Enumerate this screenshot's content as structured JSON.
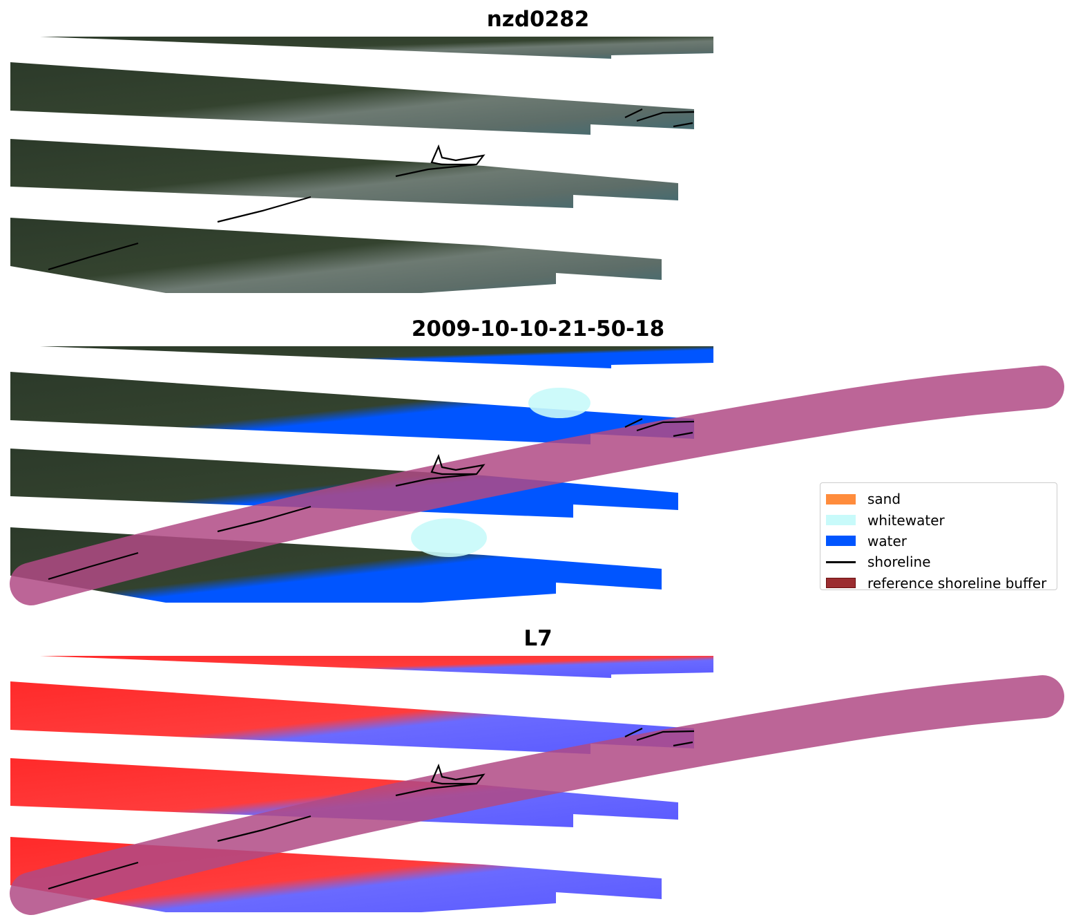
{
  "panels": [
    {
      "title": "nzd0282"
    },
    {
      "title": "2009-10-10-21-50-18"
    },
    {
      "title": "L7"
    }
  ],
  "legend": {
    "items": [
      {
        "label": "sand",
        "color": "#ff8c3c",
        "kind": "patch"
      },
      {
        "label": "whitewater",
        "color": "#c8fafa",
        "kind": "patch"
      },
      {
        "label": "water",
        "color": "#0055ff",
        "kind": "patch"
      },
      {
        "label": "shoreline",
        "color": "#000000",
        "kind": "line"
      },
      {
        "label": "reference shoreline buffer",
        "color": "#9b2d30",
        "kind": "patch"
      }
    ]
  },
  "colors": {
    "buffer_overlay": "#b04a85"
  }
}
